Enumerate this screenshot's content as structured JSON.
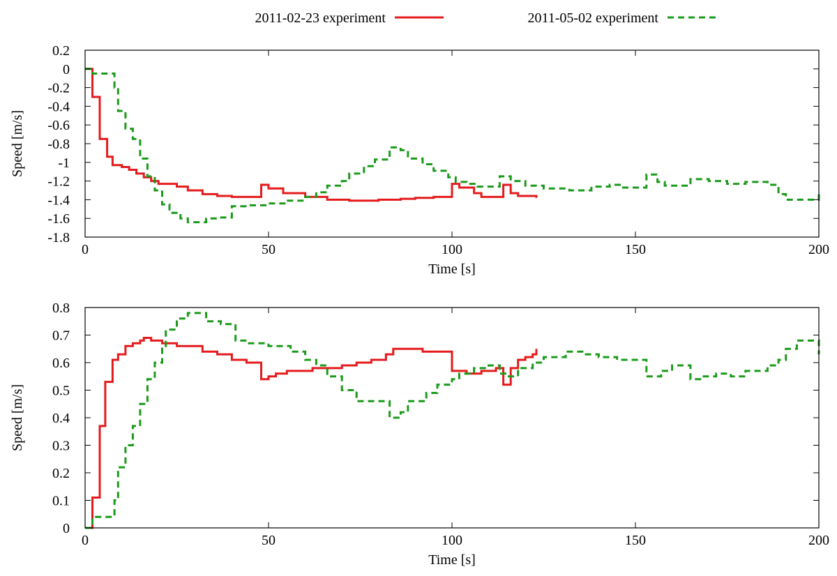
{
  "legend": {
    "series_a_label": "2011-02-23 experiment",
    "series_b_label": "2011-05-02 experiment"
  },
  "colors": {
    "series_a": "#e41a1c",
    "series_b": "#1a9a1a"
  },
  "chart_data": [
    {
      "type": "line",
      "title": "",
      "xlabel": "Time [s]",
      "ylabel": "Speed [m/s]",
      "xlim": [
        0,
        200
      ],
      "ylim": [
        -1.8,
        0.2
      ],
      "xticks": [
        0,
        50,
        100,
        150,
        200
      ],
      "yticks": [
        -1.8,
        -1.6,
        -1.4,
        -1.2,
        -1,
        -0.8,
        -0.6,
        -0.4,
        -0.2,
        0,
        0.2
      ],
      "ytick_labels": [
        "-1.8",
        "-1.6",
        "-1.4",
        "-1.2",
        "-1",
        "-0.8",
        "-0.6",
        "-0.4",
        "-0.2",
        "0",
        "0.2"
      ],
      "grid": false,
      "step": true,
      "series": [
        {
          "name": "2011-02-23 experiment",
          "color": "#e41a1c",
          "dash": "solid",
          "points": [
            [
              0,
              0
            ],
            [
              1.5,
              0
            ],
            [
              2,
              -0.3
            ],
            [
              4,
              -0.75
            ],
            [
              6,
              -0.94
            ],
            [
              7.5,
              -1.03
            ],
            [
              10,
              -1.05
            ],
            [
              12,
              -1.08
            ],
            [
              14,
              -1.12
            ],
            [
              16,
              -1.16
            ],
            [
              18,
              -1.2
            ],
            [
              20,
              -1.23
            ],
            [
              25,
              -1.26
            ],
            [
              28,
              -1.3
            ],
            [
              32,
              -1.34
            ],
            [
              36,
              -1.36
            ],
            [
              40,
              -1.37
            ],
            [
              48,
              -1.24
            ],
            [
              50,
              -1.28
            ],
            [
              54,
              -1.33
            ],
            [
              60,
              -1.37
            ],
            [
              66,
              -1.4
            ],
            [
              72,
              -1.41
            ],
            [
              80,
              -1.4
            ],
            [
              86,
              -1.39
            ],
            [
              90,
              -1.38
            ],
            [
              95,
              -1.37
            ],
            [
              100,
              -1.23
            ],
            [
              102,
              -1.27
            ],
            [
              106,
              -1.33
            ],
            [
              108,
              -1.37
            ],
            [
              114,
              -1.24
            ],
            [
              116,
              -1.33
            ],
            [
              118,
              -1.36
            ],
            [
              123,
              -1.38
            ]
          ]
        },
        {
          "name": "2011-05-02 experiment",
          "color": "#1a9a1a",
          "dash": "dashed",
          "points": [
            [
              0,
              0
            ],
            [
              2,
              -0.05
            ],
            [
              8,
              -0.2
            ],
            [
              9,
              -0.45
            ],
            [
              11,
              -0.64
            ],
            [
              13,
              -0.75
            ],
            [
              15,
              -0.96
            ],
            [
              17,
              -1.15
            ],
            [
              19,
              -1.3
            ],
            [
              21,
              -1.45
            ],
            [
              23,
              -1.54
            ],
            [
              26,
              -1.6
            ],
            [
              28,
              -1.64
            ],
            [
              33,
              -1.6
            ],
            [
              36,
              -1.59
            ],
            [
              40,
              -1.47
            ],
            [
              44,
              -1.46
            ],
            [
              50,
              -1.44
            ],
            [
              55,
              -1.41
            ],
            [
              60,
              -1.37
            ],
            [
              63,
              -1.32
            ],
            [
              66,
              -1.25
            ],
            [
              70,
              -1.2
            ],
            [
              72,
              -1.12
            ],
            [
              76,
              -1.04
            ],
            [
              79,
              -0.97
            ],
            [
              83,
              -0.84
            ],
            [
              86,
              -0.87
            ],
            [
              88,
              -0.96
            ],
            [
              92,
              -1.02
            ],
            [
              95,
              -1.09
            ],
            [
              99,
              -1.16
            ],
            [
              101,
              -1.21
            ],
            [
              104,
              -1.23
            ],
            [
              107,
              -1.26
            ],
            [
              113,
              -1.15
            ],
            [
              116,
              -1.2
            ],
            [
              120,
              -1.25
            ],
            [
              125,
              -1.28
            ],
            [
              132,
              -1.3
            ],
            [
              138,
              -1.26
            ],
            [
              143,
              -1.24
            ],
            [
              146,
              -1.27
            ],
            [
              153,
              -1.13
            ],
            [
              156,
              -1.21
            ],
            [
              158,
              -1.25
            ],
            [
              165,
              -1.18
            ],
            [
              170,
              -1.2
            ],
            [
              175,
              -1.23
            ],
            [
              180,
              -1.21
            ],
            [
              186,
              -1.24
            ],
            [
              189,
              -1.34
            ],
            [
              191,
              -1.4
            ],
            [
              199,
              -1.4
            ],
            [
              200,
              -1.3
            ]
          ]
        }
      ]
    },
    {
      "type": "line",
      "title": "",
      "xlabel": "Time [s]",
      "ylabel": "Speed [m/s]",
      "xlim": [
        0,
        200
      ],
      "ylim": [
        0,
        0.8
      ],
      "xticks": [
        0,
        50,
        100,
        150,
        200
      ],
      "yticks": [
        0,
        0.1,
        0.2,
        0.3,
        0.4,
        0.5,
        0.6,
        0.7,
        0.8
      ],
      "ytick_labels": [
        "0",
        "0.1",
        "0.2",
        "0.3",
        "0.4",
        "0.5",
        "0.6",
        "0.7",
        "0.8"
      ],
      "grid": false,
      "step": true,
      "series": [
        {
          "name": "2011-02-23 experiment",
          "color": "#e41a1c",
          "dash": "solid",
          "points": [
            [
              0,
              0
            ],
            [
              1.5,
              0
            ],
            [
              2,
              0.11
            ],
            [
              4,
              0.37
            ],
            [
              5.5,
              0.53
            ],
            [
              7.5,
              0.61
            ],
            [
              9,
              0.63
            ],
            [
              11,
              0.66
            ],
            [
              13,
              0.67
            ],
            [
              15,
              0.68
            ],
            [
              16,
              0.69
            ],
            [
              18,
              0.68
            ],
            [
              21,
              0.67
            ],
            [
              25,
              0.66
            ],
            [
              30,
              0.66
            ],
            [
              32,
              0.64
            ],
            [
              36,
              0.63
            ],
            [
              40,
              0.61
            ],
            [
              44,
              0.6
            ],
            [
              48,
              0.54
            ],
            [
              50,
              0.55
            ],
            [
              52,
              0.56
            ],
            [
              55,
              0.57
            ],
            [
              58,
              0.57
            ],
            [
              62,
              0.58
            ],
            [
              66,
              0.58
            ],
            [
              70,
              0.59
            ],
            [
              74,
              0.6
            ],
            [
              78,
              0.61
            ],
            [
              82,
              0.63
            ],
            [
              84,
              0.65
            ],
            [
              88,
              0.65
            ],
            [
              92,
              0.64
            ],
            [
              100,
              0.57
            ],
            [
              104,
              0.56
            ],
            [
              108,
              0.57
            ],
            [
              112,
              0.58
            ],
            [
              114,
              0.52
            ],
            [
              116,
              0.58
            ],
            [
              118,
              0.61
            ],
            [
              120,
              0.62
            ],
            [
              122,
              0.63
            ],
            [
              123,
              0.65
            ]
          ]
        },
        {
          "name": "2011-05-02 experiment",
          "color": "#1a9a1a",
          "dash": "dashed",
          "points": [
            [
              0,
              0
            ],
            [
              1.5,
              0
            ],
            [
              2,
              0.04
            ],
            [
              8,
              0.1
            ],
            [
              9,
              0.22
            ],
            [
              11,
              0.3
            ],
            [
              13,
              0.37
            ],
            [
              15,
              0.45
            ],
            [
              17,
              0.54
            ],
            [
              19,
              0.6
            ],
            [
              21,
              0.66
            ],
            [
              22,
              0.72
            ],
            [
              25,
              0.76
            ],
            [
              28,
              0.78
            ],
            [
              33,
              0.75
            ],
            [
              37,
              0.74
            ],
            [
              41,
              0.68
            ],
            [
              44,
              0.67
            ],
            [
              50,
              0.66
            ],
            [
              56,
              0.64
            ],
            [
              60,
              0.61
            ],
            [
              63,
              0.59
            ],
            [
              66,
              0.55
            ],
            [
              70,
              0.5
            ],
            [
              74,
              0.46
            ],
            [
              79,
              0.46
            ],
            [
              83,
              0.4
            ],
            [
              86,
              0.42
            ],
            [
              88,
              0.46
            ],
            [
              93,
              0.49
            ],
            [
              96,
              0.52
            ],
            [
              100,
              0.54
            ],
            [
              102,
              0.56
            ],
            [
              106,
              0.58
            ],
            [
              110,
              0.59
            ],
            [
              113,
              0.56
            ],
            [
              115,
              0.55
            ],
            [
              118,
              0.58
            ],
            [
              122,
              0.6
            ],
            [
              125,
              0.62
            ],
            [
              131,
              0.64
            ],
            [
              136,
              0.63
            ],
            [
              140,
              0.62
            ],
            [
              145,
              0.61
            ],
            [
              153,
              0.55
            ],
            [
              157,
              0.57
            ],
            [
              160,
              0.59
            ],
            [
              165,
              0.54
            ],
            [
              168,
              0.55
            ],
            [
              172,
              0.56
            ],
            [
              176,
              0.55
            ],
            [
              180,
              0.57
            ],
            [
              186,
              0.59
            ],
            [
              189,
              0.61
            ],
            [
              191,
              0.65
            ],
            [
              194,
              0.68
            ],
            [
              199,
              0.68
            ],
            [
              200,
              0.63
            ]
          ]
        }
      ]
    }
  ]
}
